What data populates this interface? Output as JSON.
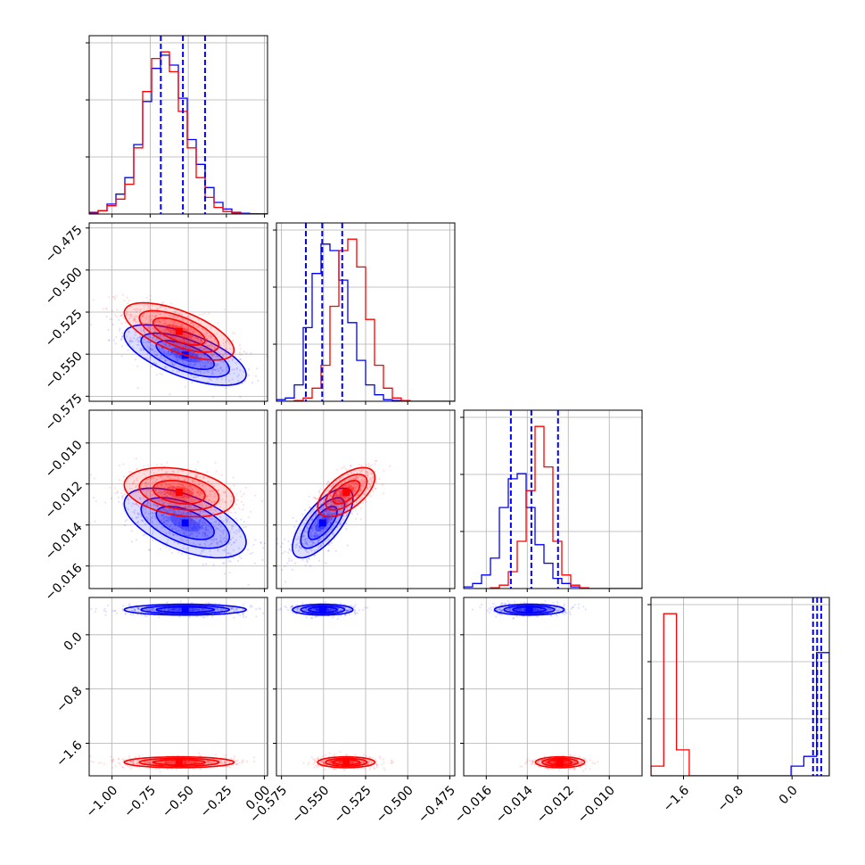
{
  "colors": {
    "series_a": "#0000ff",
    "series_b": "#ff0000",
    "quantile_line": "#0000ff",
    "grid": "#b0b0b0"
  },
  "chart_data": {
    "type": "corner",
    "grid": true,
    "series_colors": [
      "blue",
      "red"
    ],
    "parameters": [
      {
        "index": 0,
        "range": [
          -1.15,
          0.02
        ],
        "ticks": [
          -1.0,
          -0.75,
          -0.5,
          -0.25,
          0.0
        ],
        "tick_labels": [
          "−1.00",
          "−0.75",
          "−0.50",
          "−0.25",
          "0.00"
        ]
      },
      {
        "index": 1,
        "range": [
          -0.578,
          -0.472
        ],
        "ticks": [
          -0.575,
          -0.55,
          -0.525,
          -0.5,
          -0.475
        ],
        "tick_labels": [
          "−0.575",
          "−0.550",
          "−0.525",
          "−0.500",
          "−0.475"
        ]
      },
      {
        "index": 2,
        "range": [
          -0.0171,
          -0.0084
        ],
        "ticks": [
          -0.016,
          -0.014,
          -0.012,
          -0.01
        ],
        "tick_labels": [
          "−0.016",
          "−0.014",
          "−0.012",
          "−0.010"
        ]
      },
      {
        "index": 3,
        "range": [
          -2.08,
          0.55
        ],
        "ticks": [
          -1.6,
          -0.8,
          0.0
        ],
        "tick_labels": [
          "−1.6",
          "−0.8",
          "0.0"
        ]
      }
    ],
    "diagonal_histograms": [
      {
        "param": 0,
        "bin_edges_range": [
          -1.15,
          0.02
        ],
        "bins": 20,
        "series_a_counts": [
          1,
          2,
          6,
          12,
          22,
          42,
          68,
          88,
          96,
          90,
          70,
          45,
          30,
          16,
          7,
          3,
          1,
          0.5,
          0.2,
          0.1
        ],
        "series_b_counts": [
          0.5,
          2,
          5,
          9,
          18,
          40,
          74,
          94,
          98,
          86,
          62,
          40,
          22,
          10,
          4,
          1.5,
          0.6,
          0.2,
          0.1,
          0
        ],
        "quantiles": [
          -0.68,
          -0.535,
          -0.39
        ]
      },
      {
        "param": 1,
        "bin_edges_range": [
          -0.578,
          -0.472
        ],
        "bins": 20,
        "series_a_counts": [
          1,
          2,
          10,
          45,
          78,
          96,
          92,
          74,
          48,
          25,
          10,
          4,
          1,
          0.5,
          0,
          0,
          0,
          0,
          0,
          0
        ],
        "series_b_counts": [
          0,
          0,
          0.5,
          2,
          8,
          22,
          58,
          92,
          99,
          82,
          50,
          22,
          8,
          2,
          0.5,
          0,
          0,
          0,
          0,
          0
        ],
        "quantiles": [
          -0.5605,
          -0.5508,
          -0.5389
        ]
      },
      {
        "param": 2,
        "bin_edges_range": [
          -0.0171,
          -0.0084
        ],
        "bins": 20,
        "series_a_counts": [
          1,
          3,
          8,
          18,
          48,
          65,
          68,
          48,
          26,
          15,
          6,
          3,
          1,
          0.5,
          0,
          0,
          0,
          0,
          0,
          0
        ],
        "series_b_counts": [
          0,
          0,
          0,
          0.5,
          2,
          10,
          28,
          58,
          96,
          72,
          28,
          8,
          2,
          0.5,
          0,
          0,
          0,
          0,
          0,
          0
        ],
        "quantiles": [
          -0.0148,
          -0.0138,
          -0.0125
        ]
      },
      {
        "param": 3,
        "bin_edges_range": [
          -2.08,
          0.55
        ],
        "bins": 14,
        "series_a_counts": [
          0,
          0,
          0,
          0,
          0,
          0,
          0,
          0,
          0,
          0,
          0,
          3,
          6,
          38
        ],
        "series_b_counts": [
          3,
          50,
          8,
          0,
          0,
          0,
          0,
          0,
          0,
          0,
          0,
          0,
          0,
          0
        ],
        "quantiles": [
          0.31,
          0.37,
          0.43
        ]
      }
    ],
    "distributions": {
      "series_a": {
        "mean": [
          -0.52,
          -0.5505,
          -0.0139,
          0.37
        ],
        "sd": [
          0.2,
          0.009,
          0.00085,
          0.04
        ]
      },
      "series_b": {
        "mean": [
          -0.56,
          -0.5365,
          -0.0124,
          -1.88
        ],
        "sd": [
          0.18,
          0.0085,
          0.0006,
          0.04
        ]
      },
      "correlation_series_a": {
        "0-1": -0.65,
        "0-2": -0.55,
        "1-2": 0.7
      },
      "correlation_series_b": {
        "0-1": -0.65,
        "0-2": -0.3,
        "1-2": 0.6
      }
    }
  }
}
